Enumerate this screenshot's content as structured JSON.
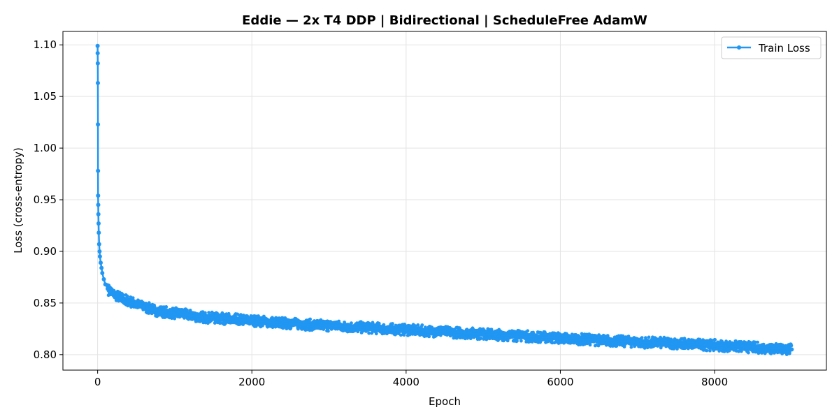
{
  "chart_data": {
    "type": "line",
    "title": "Eddie — 2x T4 DDP | Bidirectional | ScheduleFree AdamW",
    "xlabel": "Epoch",
    "ylabel": "Loss (cross-entropy)",
    "xlim": [
      -450,
      9450
    ],
    "ylim": [
      0.785,
      1.113
    ],
    "xticks": [
      0,
      2000,
      4000,
      6000,
      8000
    ],
    "xtick_labels": [
      "0",
      "2000",
      "4000",
      "6000",
      "8000"
    ],
    "yticks": [
      0.8,
      0.85,
      0.9,
      0.95,
      1.0,
      1.05,
      1.1
    ],
    "ytick_labels": [
      "0.80",
      "0.85",
      "0.90",
      "0.95",
      "1.00",
      "1.05",
      "1.10"
    ],
    "grid": true,
    "legend_position": "top-right",
    "series": [
      {
        "name": "Train Loss",
        "color": "#2196f3",
        "marker": "circle",
        "x": [
          0,
          1,
          2,
          3,
          4,
          5,
          6,
          8,
          10,
          12,
          15,
          20,
          25,
          30,
          40,
          50,
          60,
          80,
          100,
          130,
          160,
          200,
          250,
          300,
          400,
          500,
          600,
          700,
          800,
          1000,
          1200,
          1400,
          1600,
          1800,
          2000,
          2500,
          3000,
          3500,
          4000,
          4500,
          5000,
          5500,
          6000,
          6500,
          7000,
          7500,
          8000,
          8500,
          9000
        ],
        "values": [
          1.099,
          1.092,
          1.082,
          1.063,
          1.023,
          0.978,
          0.954,
          0.945,
          0.936,
          0.927,
          0.918,
          0.907,
          0.9,
          0.895,
          0.889,
          0.884,
          0.879,
          0.873,
          0.868,
          0.864,
          0.861,
          0.859,
          0.857,
          0.855,
          0.852,
          0.849,
          0.846,
          0.844,
          0.842,
          0.84,
          0.838,
          0.836,
          0.835,
          0.834,
          0.833,
          0.83,
          0.828,
          0.826,
          0.824,
          0.822,
          0.82,
          0.818,
          0.816,
          0.814,
          0.812,
          0.811,
          0.809,
          0.807,
          0.805
        ]
      }
    ]
  }
}
